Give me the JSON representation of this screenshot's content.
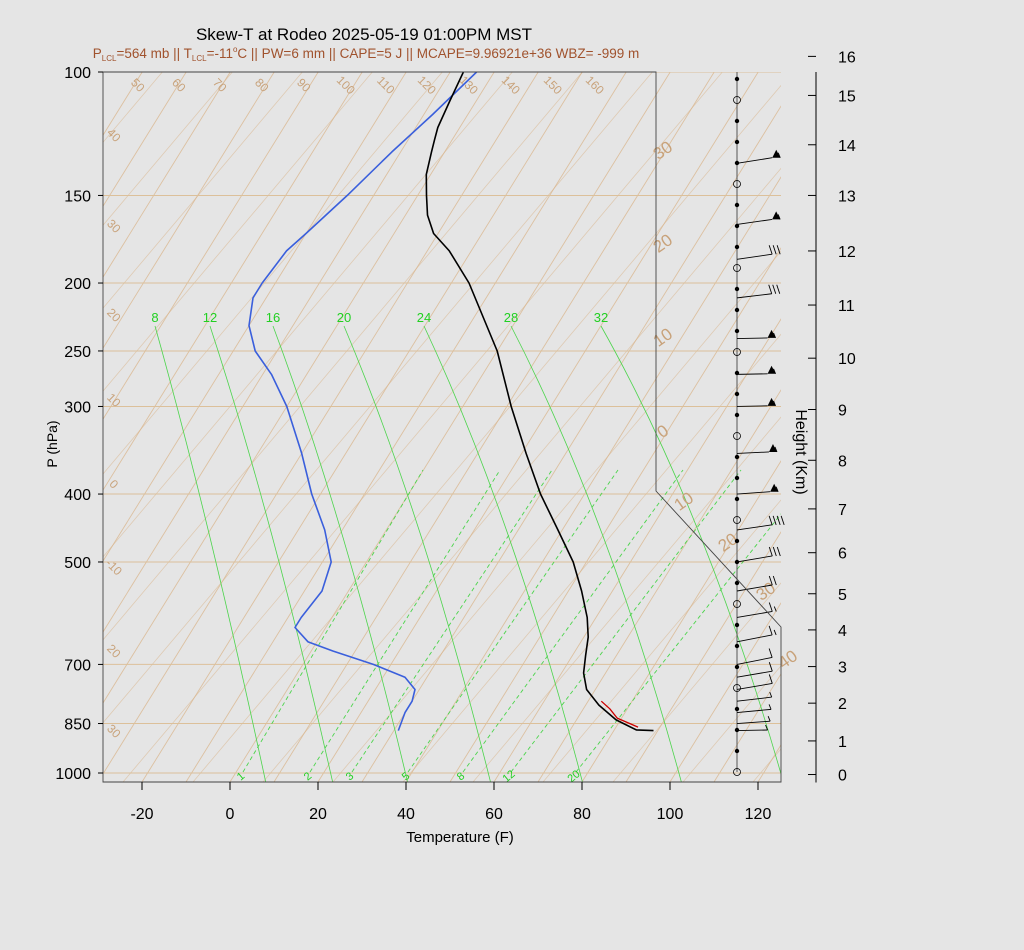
{
  "title": "Skew-T at Rodeo 2025-05-19 01:00PM MST",
  "subtitle": {
    "lcl_p_label": "P",
    "lcl_p_sub": "LCL",
    "lcl_p_value": "=564 mb || T",
    "lcl_t_sub": "LCL",
    "lcl_t_value": "=-11",
    "lcl_t_deg": "o",
    "rest": "C || PW=6 mm || CAPE=5 J || MCAPE=9.96921e+36 WBZ= -999 m"
  },
  "colors": {
    "background": "#e5e5e5",
    "temperature": "#000000",
    "dewpoint": "#3a5fdc",
    "parcel": "#cc0000",
    "isotherm": "#d9b48a",
    "isobar": "#dcc09a",
    "mixing_ratio": "#4cd44c",
    "ref_label": "#c8a27a",
    "subtitle": "#a0522d"
  },
  "chart_data": {
    "type": "skew-t",
    "xlabel": "Temperature (F)",
    "ylabel": "P (hPa)",
    "y2label": "Height (Km)",
    "xlim": [
      -28,
      125
    ],
    "ylim": [
      1030,
      100
    ],
    "x_ticks": [
      "-20",
      "0",
      "20",
      "40",
      "60",
      "80",
      "100",
      "120"
    ],
    "x_tick_values": [
      -20,
      0,
      20,
      40,
      60,
      80,
      100,
      120
    ],
    "p_ticks": [
      "100",
      "150",
      "200",
      "250",
      "300",
      "400",
      "500",
      "700",
      "850",
      "1000"
    ],
    "p_tick_values": [
      100,
      150,
      200,
      250,
      300,
      400,
      500,
      700,
      850,
      1000
    ],
    "height_ticks": [
      "0",
      "1",
      "2",
      "3",
      "4",
      "5",
      "6",
      "7",
      "8",
      "9",
      "10",
      "11",
      "12",
      "13",
      "14",
      "15",
      "16"
    ],
    "height_tick_values": [
      0,
      1,
      2,
      3,
      4,
      5,
      6,
      7,
      8,
      9,
      10,
      11,
      12,
      13,
      14,
      15,
      16
    ],
    "height_pressures": [
      1005,
      900,
      795,
      705,
      625,
      555,
      485,
      420,
      358,
      303,
      256,
      215,
      180,
      150,
      127,
      108,
      95
    ],
    "isotherm_labels": [
      "-30",
      "-20",
      "-10",
      "0",
      "10",
      "20",
      "30",
      "40",
      "50",
      "60",
      "70",
      "80",
      "90",
      "100",
      "110",
      "120",
      "130",
      "140",
      "150",
      "160"
    ],
    "isotherm_values": [
      -30,
      -20,
      -10,
      0,
      10,
      20,
      30,
      40,
      50,
      60,
      70,
      80,
      90,
      100,
      110,
      120,
      130,
      140,
      150,
      160
    ],
    "mixing_ratio_values": [
      8,
      12,
      16,
      20,
      24,
      28,
      32
    ],
    "mixing_ratio_labels": [
      "8",
      "12",
      "16",
      "20",
      "24",
      "28",
      "32"
    ],
    "mixing_ratio_lower_values": [
      1,
      2,
      3,
      5,
      8,
      12,
      20
    ],
    "mixing_ratio_lower_labels": [
      "1",
      "2",
      "3",
      "5",
      "8",
      "12",
      "20"
    ],
    "right_scale_labels": [
      "30",
      "20",
      "10",
      "0",
      "10",
      "20",
      "30",
      "40"
    ],
    "right_scale_values": [
      -30,
      -20,
      -10,
      0,
      10,
      20,
      30,
      40
    ],
    "left_scale_labels": [
      "40",
      "30",
      "20",
      "10",
      "0",
      "-10",
      "20",
      "30"
    ],
    "left_scale_values": [
      40,
      30,
      20,
      10,
      0,
      -10,
      -20,
      -30
    ],
    "temperature_profile": [
      {
        "p": 870,
        "t": 89
      },
      {
        "p": 868,
        "t": 85
      },
      {
        "p": 840,
        "t": 79
      },
      {
        "p": 800,
        "t": 73
      },
      {
        "p": 760,
        "t": 68
      },
      {
        "p": 720,
        "t": 65
      },
      {
        "p": 680,
        "t": 63
      },
      {
        "p": 640,
        "t": 61
      },
      {
        "p": 600,
        "t": 58
      },
      {
        "p": 550,
        "t": 53
      },
      {
        "p": 500,
        "t": 47
      },
      {
        "p": 450,
        "t": 39
      },
      {
        "p": 400,
        "t": 30
      },
      {
        "p": 350,
        "t": 21
      },
      {
        "p": 300,
        "t": 11
      },
      {
        "p": 250,
        "t": 0
      },
      {
        "p": 200,
        "t": -16
      },
      {
        "p": 180,
        "t": -25
      },
      {
        "p": 170,
        "t": -31
      },
      {
        "p": 160,
        "t": -35
      },
      {
        "p": 150,
        "t": -38
      },
      {
        "p": 140,
        "t": -41
      },
      {
        "p": 130,
        "t": -43
      },
      {
        "p": 125,
        "t": -44
      },
      {
        "p": 120,
        "t": -45
      },
      {
        "p": 110,
        "t": -46
      },
      {
        "p": 100,
        "t": -47
      }
    ],
    "dewpoint_profile": [
      {
        "p": 870,
        "t": 31
      },
      {
        "p": 820,
        "t": 30
      },
      {
        "p": 790,
        "t": 30
      },
      {
        "p": 760,
        "t": 29
      },
      {
        "p": 730,
        "t": 25
      },
      {
        "p": 700,
        "t": 16
      },
      {
        "p": 670,
        "t": 5
      },
      {
        "p": 650,
        "t": -2
      },
      {
        "p": 620,
        "t": -7
      },
      {
        "p": 600,
        "t": -7
      },
      {
        "p": 550,
        "t": -6
      },
      {
        "p": 500,
        "t": -8
      },
      {
        "p": 450,
        "t": -14
      },
      {
        "p": 400,
        "t": -22
      },
      {
        "p": 350,
        "t": -30
      },
      {
        "p": 300,
        "t": -40
      },
      {
        "p": 270,
        "t": -48
      },
      {
        "p": 250,
        "t": -55
      },
      {
        "p": 230,
        "t": -60
      },
      {
        "p": 210,
        "t": -63
      },
      {
        "p": 200,
        "t": -63
      },
      {
        "p": 180,
        "t": -62
      },
      {
        "p": 170,
        "t": -60
      },
      {
        "p": 150,
        "t": -56
      },
      {
        "p": 130,
        "t": -52
      },
      {
        "p": 115,
        "t": -48
      },
      {
        "p": 100,
        "t": -44
      }
    ],
    "parcel_profile": [
      {
        "p": 860,
        "t": 85
      },
      {
        "p": 835,
        "t": 79
      },
      {
        "p": 810,
        "t": 76
      },
      {
        "p": 790,
        "t": 73
      }
    ],
    "wind_barbs": [
      {
        "p": 870,
        "speed": 5,
        "dir": 300
      },
      {
        "p": 850,
        "speed": 5,
        "dir": 290
      },
      {
        "p": 820,
        "speed": 5,
        "dir": 285
      },
      {
        "p": 790,
        "speed": 5,
        "dir": 280
      },
      {
        "p": 760,
        "speed": 10,
        "dir": 270
      },
      {
        "p": 730,
        "speed": 10,
        "dir": 270
      },
      {
        "p": 700,
        "speed": 10,
        "dir": 265
      },
      {
        "p": 650,
        "speed": 15,
        "dir": 265
      },
      {
        "p": 600,
        "speed": 15,
        "dir": 270
      },
      {
        "p": 550,
        "speed": 20,
        "dir": 270
      },
      {
        "p": 500,
        "speed": 30,
        "dir": 270
      },
      {
        "p": 450,
        "speed": 40,
        "dir": 275
      },
      {
        "p": 400,
        "speed": 55,
        "dir": 290
      },
      {
        "p": 350,
        "speed": 55,
        "dir": 295
      },
      {
        "p": 300,
        "speed": 55,
        "dir": 300
      },
      {
        "p": 270,
        "speed": 55,
        "dir": 300
      },
      {
        "p": 240,
        "speed": 55,
        "dir": 300
      },
      {
        "p": 210,
        "speed": 30,
        "dir": 280
      },
      {
        "p": 185,
        "speed": 30,
        "dir": 275
      },
      {
        "p": 165,
        "speed": 55,
        "dir": 275
      },
      {
        "p": 135,
        "speed": 55,
        "dir": 272
      }
    ]
  }
}
